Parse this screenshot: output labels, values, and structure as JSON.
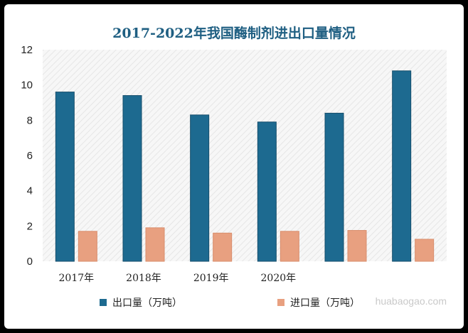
{
  "chart_data": {
    "type": "bar",
    "title": "2017-2022年我国酶制剂进出口量情况",
    "categories": [
      "2017年",
      "2018年",
      "2019年",
      "2020年",
      "",
      ""
    ],
    "series": [
      {
        "name": "出口量（万吨）",
        "color": "#1d6a90",
        "values": [
          9.6,
          9.4,
          8.3,
          7.9,
          8.4,
          10.8
        ]
      },
      {
        "name": "进口量（万吨）",
        "color": "#e8a080",
        "values": [
          1.7,
          1.9,
          1.6,
          1.7,
          1.75,
          1.25
        ]
      }
    ],
    "ylim": [
      0,
      12
    ],
    "yticks": [
      0,
      2,
      4,
      6,
      8,
      10,
      12
    ],
    "grid": false,
    "legend": "bottom"
  },
  "watermark": "huabaogao.com"
}
